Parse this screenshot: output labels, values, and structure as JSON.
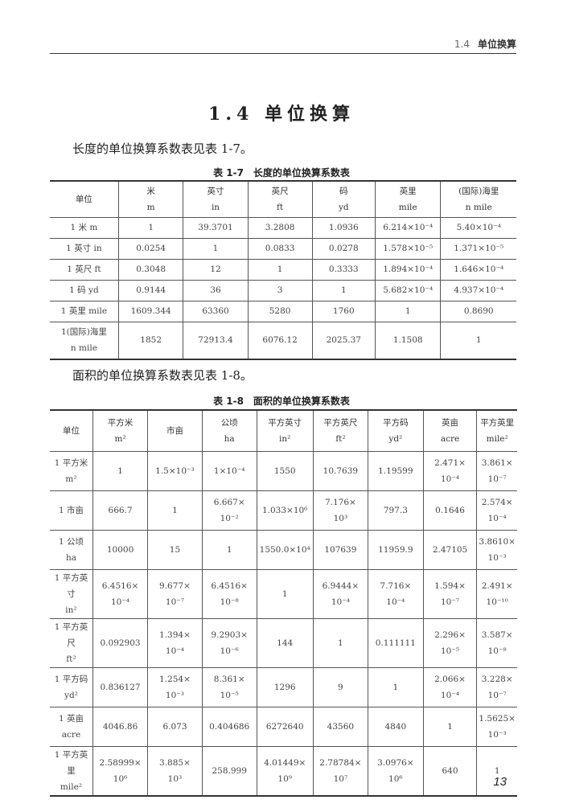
{
  "header": {
    "section": "1.4",
    "title": "单位换算"
  },
  "title": "1.4 单位换算",
  "para1": "长度的单位换算系数表见表 1-7。",
  "table1": {
    "caption": "表 1-7　长度的单位换算系数表",
    "headers": [
      "单位",
      "米\nm",
      "英寸\nin",
      "英尺\nft",
      "码\nyd",
      "英里\nmile",
      "(国际)海里\nn mile"
    ],
    "rows": [
      [
        "1 米 m",
        "1",
        "39.3701",
        "3.2808",
        "1.0936",
        "6.214×10⁻⁴",
        "5.40×10⁻⁴"
      ],
      [
        "1 英寸 in",
        "0.0254",
        "1",
        "0.0833",
        "0.0278",
        "1.578×10⁻⁵",
        "1.371×10⁻⁵"
      ],
      [
        "1 英尺 ft",
        "0.3048",
        "12",
        "1",
        "0.3333",
        "1.894×10⁻⁴",
        "1.646×10⁻⁴"
      ],
      [
        "1 码 yd",
        "0.9144",
        "36",
        "3",
        "1",
        "5.682×10⁻⁴",
        "4.937×10⁻⁴"
      ],
      [
        "1 英里 mile",
        "1609.344",
        "63360",
        "5280",
        "1760",
        "1",
        "0.8690"
      ],
      [
        "1(国际)海里\nn mile",
        "1852",
        "72913.4",
        "6076.12",
        "2025.37",
        "1.1508",
        "1"
      ]
    ]
  },
  "para2": "面积的单位换算系数表见表 1-8。",
  "table2": {
    "caption": "表 1-8　面积的单位换算系数表",
    "headers": [
      "单位",
      "平方米\nm²",
      "市亩",
      "公顷\nha",
      "平方英寸\nin²",
      "平方英尺\nft²",
      "平方码\nyd²",
      "英亩\nacre",
      "平方英里\nmile²"
    ],
    "rows": [
      [
        "1 平方米\nm²",
        "1",
        "1.5×10⁻³",
        "1×10⁻⁴",
        "1550",
        "10.7639",
        "1.19599",
        "2.471×\n10⁻⁴",
        "3.861×\n10⁻⁷"
      ],
      [
        "1 市亩",
        "666.7",
        "1",
        "6.667×\n10⁻²",
        "1.033×10⁶",
        "7.176×\n10³",
        "797.3",
        "0.1646",
        "2.574×\n10⁻⁴"
      ],
      [
        "1 公顷\nha",
        "10000",
        "15",
        "1",
        "1550.0×10⁴",
        "107639",
        "11959.9",
        "2.47105",
        "3.8610×\n10⁻³"
      ],
      [
        "1 平方英寸\nin²",
        "6.4516×\n10⁻⁴",
        "9.677×\n10⁻⁷",
        "6.4516×\n10⁻⁸",
        "1",
        "6.9444×\n10⁻⁴",
        "7.716×\n10⁻⁴",
        "1.594×\n10⁻⁷",
        "2.491×\n10⁻¹⁰"
      ],
      [
        "1 平方英尺\nft²",
        "0.092903",
        "1.394×\n10⁻⁴",
        "9.2903×\n10⁻⁶",
        "144",
        "1",
        "0.111111",
        "2.296×\n10⁻⁵",
        "3.587×\n10⁻⁸"
      ],
      [
        "1 平方码\nyd²",
        "0.836127",
        "1.254×\n10⁻³",
        "8.361×\n10⁻⁵",
        "1296",
        "9",
        "1",
        "2.066×\n10⁻⁴",
        "3.228×\n10⁻⁷"
      ],
      [
        "1 英亩\nacre",
        "4046.86",
        "6.073",
        "0.404686",
        "6272640",
        "43560",
        "4840",
        "1",
        "1.5625×\n10⁻³"
      ],
      [
        "1 平方英里\nmile²",
        "2.58999×\n10⁶",
        "3.885×\n10³",
        "258.999",
        "4.01449×\n10⁹",
        "2.78784×\n10⁷",
        "3.0976×\n10⁶",
        "640",
        "1"
      ]
    ]
  },
  "page_number": "13"
}
